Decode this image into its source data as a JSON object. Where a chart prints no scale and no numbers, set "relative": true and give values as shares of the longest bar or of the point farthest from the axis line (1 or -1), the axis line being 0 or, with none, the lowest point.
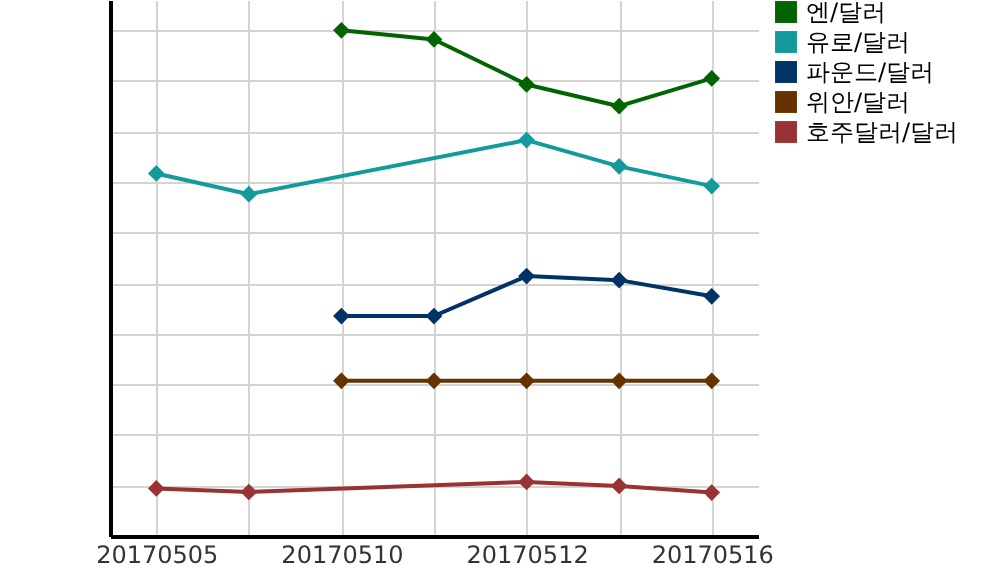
{
  "chart_data": {
    "type": "line",
    "relative": true,
    "categories": [
      "20170505",
      null,
      "20170510",
      null,
      "20170512",
      null,
      "20170516"
    ],
    "series": [
      {
        "name": "엔/달러",
        "color": "#006400",
        "values": [
          null,
          null,
          1,
          0.982,
          0.893,
          0.85,
          0.905
        ]
      },
      {
        "name": "유로/달러",
        "color": "#129a9c",
        "values": [
          0.717,
          0.676,
          null,
          null,
          0.783,
          0.731,
          0.692
        ]
      },
      {
        "name": "파운드/달러",
        "color": "#003366",
        "values": [
          null,
          null,
          0.435,
          0.435,
          0.514,
          0.506,
          0.474
        ]
      },
      {
        "name": "위안/달러",
        "color": "#663300",
        "values": [
          null,
          null,
          0.307,
          0.307,
          0.307,
          0.307,
          0.307
        ]
      },
      {
        "name": "호주달러/달러",
        "color": "#993333",
        "values": [
          0.094,
          0.087,
          null,
          null,
          0.107,
          0.099,
          0.086
        ]
      }
    ],
    "grid": true,
    "legend": "right",
    "marker": "diamond",
    "line_style": "solid"
  }
}
